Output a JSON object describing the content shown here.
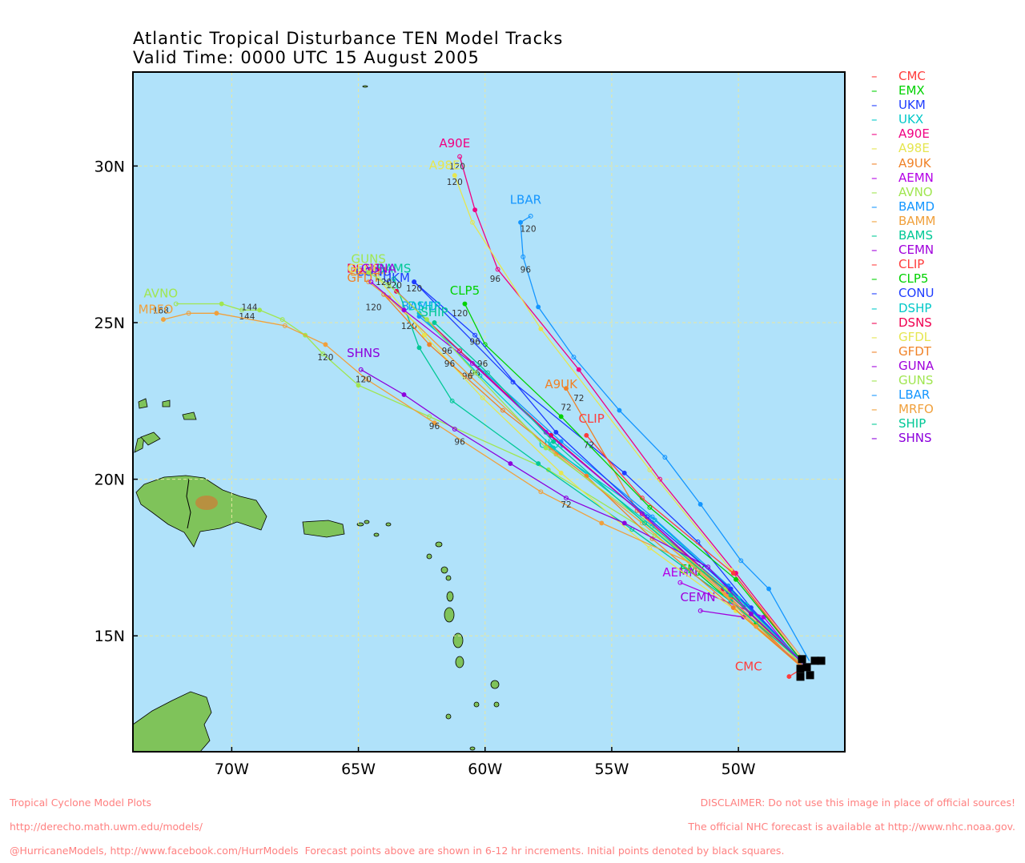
{
  "title": {
    "line1": "Atlantic Tropical Disturbance TEN Model Tracks",
    "line2": "Valid Time: 0000 UTC 15 August 2005"
  },
  "axes": {
    "x_ticks": [
      {
        "lon": 70,
        "label": "70W"
      },
      {
        "lon": 65,
        "label": "65W"
      },
      {
        "lon": 60,
        "label": "60W"
      },
      {
        "lon": 55,
        "label": "55W"
      },
      {
        "lon": 50,
        "label": "50W"
      }
    ],
    "y_ticks": [
      {
        "lat": 30,
        "label": "30N"
      },
      {
        "lat": 25,
        "label": "25N"
      },
      {
        "lat": 20,
        "label": "20N"
      },
      {
        "lat": 15,
        "label": "15N"
      }
    ],
    "lon_range_W": [
      73.9,
      45.8
    ],
    "lat_range_N": [
      11.3,
      33.0
    ]
  },
  "colors": {
    "ocean": "#b0e2fa",
    "land": "#7fc35a",
    "grid": "#e8e8a0",
    "footer": "#ff8080"
  },
  "models": [
    {
      "name": "CMC",
      "color": "#ff3c3c",
      "track": [
        [
          13.9,
          47.6
        ],
        [
          13.7,
          48.0
        ]
      ],
      "label_pos": [
        13.9,
        49.6
      ],
      "tau": []
    },
    {
      "name": "EMX",
      "color": "#00d200",
      "track": [
        [
          14.0,
          47.5
        ],
        [
          15.4,
          49.3
        ],
        [
          17.0,
          51.6
        ]
      ],
      "label_pos": [
        17.0,
        51.8
      ],
      "tau": []
    },
    {
      "name": "UKM",
      "color": "#1e3cff",
      "track": [
        [
          14.1,
          47.4
        ],
        [
          15.9,
          49.5
        ],
        [
          18.0,
          51.6
        ],
        [
          20.2,
          54.5
        ],
        [
          23.1,
          58.9
        ],
        [
          26.3,
          62.8
        ]
      ],
      "label_pos": [
        26.3,
        63.5
      ],
      "tau": []
    },
    {
      "name": "UKX",
      "color": "#00c8c8",
      "track": [
        [
          14.1,
          47.4
        ],
        [
          16.0,
          49.7
        ],
        [
          18.7,
          53.3
        ],
        [
          21.0,
          57.4
        ]
      ],
      "label_pos": [
        21.0,
        57.4
      ],
      "tau": []
    },
    {
      "name": "A90E",
      "color": "#f00082",
      "track": [
        [
          14.2,
          47.4
        ],
        [
          17.0,
          50.1
        ],
        [
          20.0,
          53.1
        ],
        [
          23.5,
          56.3
        ],
        [
          26.7,
          59.5
        ],
        [
          28.6,
          60.4
        ],
        [
          30.3,
          61.0
        ]
      ],
      "label_pos": [
        30.6,
        61.2
      ],
      "tau": [
        {
          "t": "96",
          "lat": 26.3,
          "lon": 59.6
        },
        {
          "t": "120",
          "lat": 29.9,
          "lon": 61.1
        }
      ]
    },
    {
      "name": "A98E",
      "color": "#e6e650",
      "track": [
        [
          14.2,
          47.4
        ],
        [
          17.1,
          50.3
        ],
        [
          20.3,
          53.5
        ],
        [
          24.8,
          57.8
        ],
        [
          28.2,
          60.5
        ],
        [
          29.7,
          61.2
        ]
      ],
      "label_pos": [
        29.9,
        61.6
      ],
      "tau": [
        {
          "t": "120",
          "lat": 29.4,
          "lon": 61.2
        }
      ]
    },
    {
      "name": "A9UK",
      "color": "#f08228",
      "track": [
        [
          14.0,
          47.5
        ],
        [
          16.2,
          50.3
        ],
        [
          19.0,
          54.0
        ],
        [
          22.9,
          56.8
        ]
      ],
      "label_pos": [
        22.9,
        57.0
      ],
      "tau": [
        {
          "t": "72",
          "lat": 22.5,
          "lon": 56.3
        },
        {
          "t": "72",
          "lat": 22.2,
          "lon": 56.8
        }
      ]
    },
    {
      "name": "AEMN",
      "color": "#b400e6",
      "track": [
        [
          14.0,
          47.4
        ],
        [
          15.6,
          49.0
        ],
        [
          16.7,
          52.3
        ]
      ],
      "label_pos": [
        16.9,
        52.3
      ],
      "tau": []
    },
    {
      "name": "AVNO",
      "color": "#a0e650",
      "track": [
        [
          14.0,
          47.4
        ],
        [
          16.4,
          50.4
        ],
        [
          18.2,
          53.3
        ],
        [
          20.3,
          57.5
        ],
        [
          22.0,
          62.2
        ],
        [
          23.0,
          65.0
        ],
        [
          24.0,
          66.4
        ],
        [
          24.6,
          67.1
        ],
        [
          25.1,
          68.0
        ],
        [
          25.4,
          68.9
        ],
        [
          25.4,
          69.6
        ],
        [
          25.6,
          70.4
        ],
        [
          25.6,
          72.2
        ]
      ],
      "label_pos": [
        25.8,
        72.8
      ],
      "tau": [
        {
          "t": "120",
          "lat": 23.8,
          "lon": 66.3
        },
        {
          "t": "144",
          "lat": 25.1,
          "lon": 69.4
        },
        {
          "t": "168",
          "lat": 25.3,
          "lon": 72.8
        }
      ]
    },
    {
      "name": "BAMD",
      "color": "#1496ff",
      "track": [
        [
          14.1,
          47.4
        ],
        [
          16.6,
          50.4
        ],
        [
          18.8,
          53.4
        ],
        [
          21.2,
          57.0
        ],
        [
          23.4,
          60.0
        ],
        [
          25.2,
          62.6
        ]
      ],
      "label_pos": [
        25.4,
        62.6
      ],
      "tau": [
        {
          "t": "120",
          "lat": 24.8,
          "lon": 63.0
        }
      ]
    },
    {
      "name": "BAMM",
      "color": "#f0a03c",
      "track": [
        [
          14.1,
          47.4
        ],
        [
          16.3,
          50.5
        ],
        [
          18.6,
          53.8
        ],
        [
          20.8,
          57.2
        ],
        [
          23.3,
          60.6
        ],
        [
          25.8,
          63.8
        ],
        [
          26.3,
          64.6
        ]
      ],
      "label_pos": [
        26.5,
        64.6
      ],
      "tau": [
        {
          "t": "96",
          "lat": 23.2,
          "lon": 60.7
        },
        {
          "t": "120",
          "lat": 25.4,
          "lon": 64.4
        }
      ]
    },
    {
      "name": "BAMS",
      "color": "#00c896",
      "track": [
        [
          14.1,
          47.4
        ],
        [
          16.1,
          50.3
        ],
        [
          18.4,
          54.2
        ],
        [
          20.5,
          57.9
        ],
        [
          22.5,
          61.3
        ],
        [
          24.2,
          62.6
        ],
        [
          26.4,
          63.6
        ]
      ],
      "label_pos": [
        26.6,
        63.6
      ],
      "tau": [
        {
          "t": "120",
          "lat": 26.1,
          "lon": 63.6
        }
      ]
    },
    {
      "name": "CEMN",
      "color": "#a000dc",
      "track": [
        [
          14.0,
          47.4
        ],
        [
          15.6,
          49.8
        ],
        [
          15.8,
          51.5
        ]
      ],
      "label_pos": [
        16.1,
        51.6
      ],
      "tau": []
    },
    {
      "name": "CLIP",
      "color": "#ff3c3c",
      "track": [
        [
          14.1,
          47.4
        ],
        [
          17.0,
          50.2
        ],
        [
          19.4,
          53.8
        ],
        [
          21.4,
          56.0
        ]
      ],
      "label_pos": [
        21.8,
        55.8
      ],
      "tau": [
        {
          "t": "72",
          "lat": 21.0,
          "lon": 55.9
        }
      ]
    },
    {
      "name": "CLP5",
      "color": "#00d200",
      "track": [
        [
          14.1,
          47.4
        ],
        [
          16.8,
          50.1
        ],
        [
          19.1,
          53.5
        ],
        [
          22.0,
          57.0
        ],
        [
          24.3,
          60.0
        ],
        [
          25.6,
          60.8
        ]
      ],
      "label_pos": [
        25.9,
        60.8
      ],
      "tau": [
        {
          "t": "120",
          "lat": 25.2,
          "lon": 61.0
        }
      ]
    },
    {
      "name": "CONU",
      "color": "#1e3cff",
      "track": [
        [
          14.1,
          47.4
        ],
        [
          16.5,
          50.3
        ],
        [
          18.8,
          53.6
        ],
        [
          21.5,
          57.2
        ],
        [
          24.6,
          60.4
        ],
        [
          26.3,
          62.8
        ]
      ],
      "label_pos": [
        26.5,
        64.4
      ],
      "tau": [
        {
          "t": "96",
          "lat": 24.3,
          "lon": 60.4
        },
        {
          "t": "120",
          "lat": 26.0,
          "lon": 62.8
        }
      ]
    },
    {
      "name": "DSHP",
      "color": "#00c8c8",
      "track": [
        [
          14.1,
          47.4
        ],
        [
          16.2,
          50.0
        ],
        [
          18.5,
          53.4
        ],
        [
          21.0,
          57.3
        ],
        [
          23.3,
          60.2
        ],
        [
          25.3,
          62.6
        ]
      ],
      "label_pos": [
        25.4,
        62.4
      ],
      "tau": []
    },
    {
      "name": "DSNS",
      "color": "#f00050",
      "track": [
        [
          14.1,
          47.4
        ],
        [
          16.5,
          50.6
        ],
        [
          18.9,
          53.8
        ],
        [
          21.4,
          57.4
        ],
        [
          24.1,
          61.0
        ],
        [
          26.0,
          63.5
        ]
      ],
      "label_pos": [
        26.6,
        64.8
      ],
      "tau": []
    },
    {
      "name": "GFDL",
      "color": "#e6e650",
      "track": [
        [
          14.0,
          47.5
        ],
        [
          15.8,
          50.1
        ],
        [
          17.8,
          53.5
        ],
        [
          20.2,
          57.0
        ],
        [
          22.6,
          60.1
        ],
        [
          24.6,
          62.4
        ],
        [
          26.4,
          64.2
        ]
      ],
      "label_pos": [
        26.6,
        64.8
      ],
      "tau": [
        {
          "t": "96",
          "lat": 23.3,
          "lon": 60.4
        }
      ]
    },
    {
      "name": "GFDT",
      "color": "#f08228",
      "track": [
        [
          14.0,
          47.5
        ],
        [
          15.9,
          50.2
        ],
        [
          18.1,
          53.4
        ],
        [
          20.1,
          56.0
        ],
        [
          22.2,
          59.3
        ],
        [
          24.3,
          62.2
        ],
        [
          25.9,
          64.0
        ]
      ],
      "label_pos": [
        26.3,
        64.8
      ],
      "tau": [
        {
          "t": "96",
          "lat": 23.6,
          "lon": 60.1
        }
      ]
    },
    {
      "name": "GUNA",
      "color": "#a000dc",
      "track": [
        [
          14.1,
          47.4
        ],
        [
          16.4,
          50.4
        ],
        [
          18.9,
          53.8
        ],
        [
          21.5,
          57.6
        ],
        [
          23.7,
          60.5
        ],
        [
          25.4,
          63.2
        ],
        [
          26.3,
          64.5
        ]
      ],
      "label_pos": [
        26.6,
        64.2
      ],
      "tau": [
        {
          "t": "96",
          "lat": 23.6,
          "lon": 61.4
        }
      ]
    },
    {
      "name": "GUNS",
      "color": "#a0e650",
      "track": [
        [
          14.1,
          47.4
        ],
        [
          16.5,
          50.5
        ],
        [
          18.7,
          53.8
        ],
        [
          21.0,
          57.6
        ],
        [
          23.4,
          60.4
        ],
        [
          25.1,
          62.3
        ],
        [
          26.2,
          63.8
        ],
        [
          26.6,
          64.6
        ]
      ],
      "label_pos": [
        26.9,
        64.6
      ],
      "tau": [
        {
          "t": "96",
          "lat": 24.0,
          "lon": 61.5
        },
        {
          "t": "120",
          "lat": 26.2,
          "lon": 64.0
        }
      ]
    },
    {
      "name": "LBAR",
      "color": "#1496ff",
      "track": [
        [
          14.2,
          47.2
        ],
        [
          16.5,
          48.8
        ],
        [
          17.4,
          49.9
        ],
        [
          19.2,
          51.5
        ],
        [
          20.7,
          52.9
        ],
        [
          22.2,
          54.7
        ],
        [
          23.9,
          56.5
        ],
        [
          25.5,
          57.9
        ],
        [
          27.1,
          58.5
        ],
        [
          28.2,
          58.6
        ],
        [
          28.4,
          58.2
        ]
      ],
      "label_pos": [
        28.8,
        58.4
      ],
      "tau": [
        {
          "t": "96",
          "lat": 26.6,
          "lon": 58.4
        },
        {
          "t": "120",
          "lat": 27.9,
          "lon": 58.3
        }
      ]
    },
    {
      "name": "MRFO",
      "color": "#f0a03c",
      "track": [
        [
          14.0,
          47.4
        ],
        [
          15.3,
          49.3
        ],
        [
          17.3,
          51.8
        ],
        [
          18.6,
          55.4
        ],
        [
          19.6,
          57.8
        ],
        [
          21.8,
          62.0
        ],
        [
          23.2,
          64.7
        ],
        [
          24.3,
          66.3
        ],
        [
          24.9,
          67.9
        ],
        [
          25.3,
          70.6
        ],
        [
          25.3,
          71.7
        ],
        [
          25.1,
          72.7
        ]
      ],
      "label_pos": [
        25.3,
        73.0
      ],
      "tau": [
        {
          "t": "96",
          "lat": 21.6,
          "lon": 62.0
        },
        {
          "t": "144",
          "lat": 25.4,
          "lon": 69.3
        }
      ]
    },
    {
      "name": "SHIP",
      "color": "#00c896",
      "track": [
        [
          14.1,
          47.4
        ],
        [
          16.3,
          50.3
        ],
        [
          18.6,
          53.7
        ],
        [
          21.2,
          57.3
        ],
        [
          23.4,
          59.9
        ],
        [
          25.0,
          62.0
        ]
      ],
      "label_pos": [
        25.2,
        62.0
      ],
      "tau": []
    },
    {
      "name": "SHNS",
      "color": "#8c00dc",
      "track": [
        [
          14.1,
          47.4
        ],
        [
          15.7,
          49.5
        ],
        [
          17.2,
          51.2
        ],
        [
          18.6,
          54.5
        ],
        [
          19.4,
          56.8
        ],
        [
          20.5,
          59.0
        ],
        [
          21.6,
          61.2
        ],
        [
          22.7,
          63.2
        ],
        [
          23.5,
          64.9
        ]
      ],
      "label_pos": [
        23.9,
        64.8
      ],
      "tau": [
        {
          "t": "72",
          "lat": 19.1,
          "lon": 56.8
        },
        {
          "t": "96",
          "lat": 21.1,
          "lon": 61.0
        },
        {
          "t": "120",
          "lat": 23.1,
          "lon": 64.8
        }
      ]
    }
  ],
  "initial_position": {
    "lat": 14.0,
    "lon": 47.3
  },
  "footer": {
    "left": [
      "Tropical Cyclone Model Plots",
      "http://derecho.math.uwm.edu/models/",
      "@HurricaneModels, http://www.facebook.com/HurrModels  Forecast points above are shown in 6-12 hr increments. Initial points denoted by black squares."
    ],
    "right": [
      "DISCLAIMER: Do not use this image in place of official sources!",
      "The official NHC forecast is available at http://www.nhc.noaa.gov."
    ]
  }
}
